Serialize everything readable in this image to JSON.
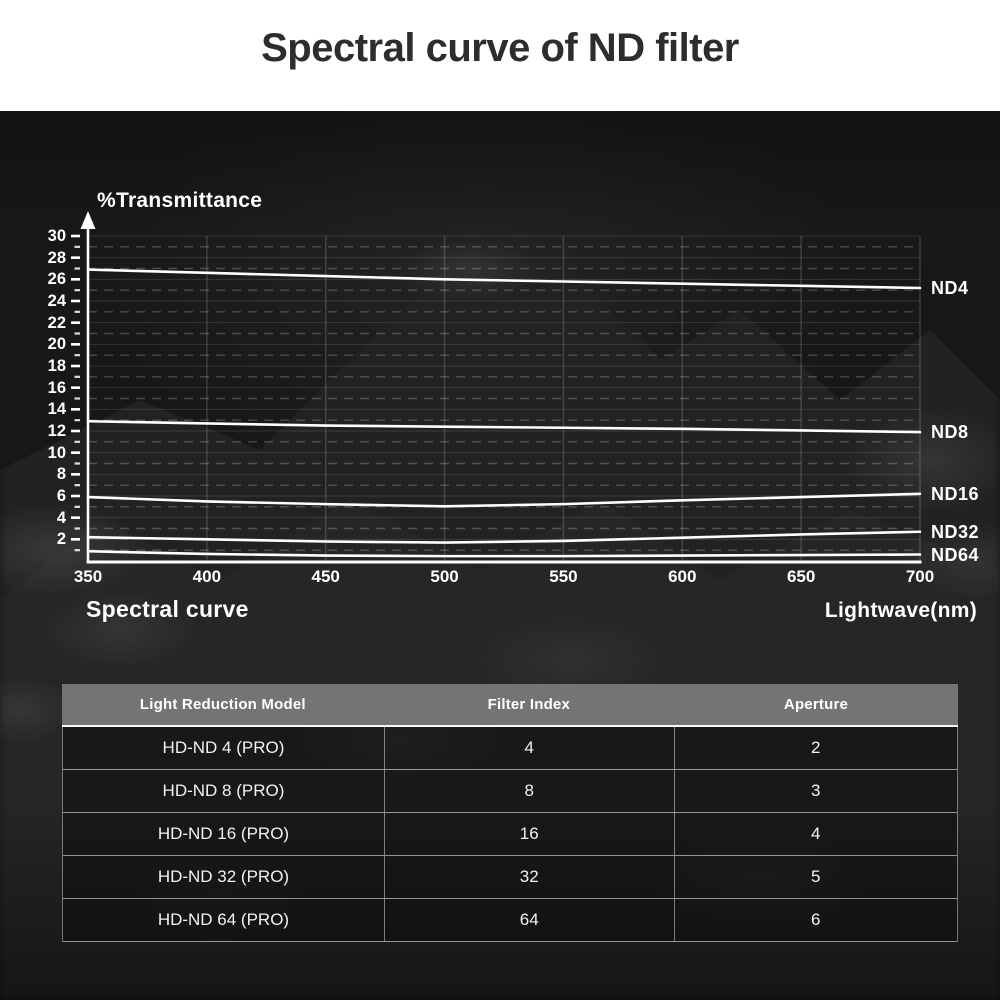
{
  "title": "Spectral curve of ND filter",
  "chart": {
    "y_axis_title": "%Transmittance",
    "x_axis_title": "Lightwave(nm)",
    "caption": "Spectral curve"
  },
  "chart_data": {
    "type": "line",
    "title": "Spectral curve of ND filter",
    "xlabel": "Lightwave(nm)",
    "ylabel": "%Transmittance",
    "x": [
      350,
      400,
      450,
      500,
      550,
      600,
      650,
      700
    ],
    "xlim": [
      350,
      700
    ],
    "ylim": [
      0,
      30
    ],
    "x_ticks": [
      350,
      400,
      450,
      500,
      550,
      600,
      650,
      700
    ],
    "y_ticks_labeled": [
      2,
      4,
      6,
      8,
      10,
      12,
      14,
      16,
      18,
      20,
      22,
      24,
      26,
      28,
      30
    ],
    "grid": {
      "horizontal_solid_at_even_values": true,
      "horizontal_dashed_at_odd_values": true,
      "vertical_at": [
        400,
        450,
        500,
        550,
        600,
        650,
        700
      ]
    },
    "legend_position": "labels at right end of each line",
    "series": [
      {
        "name": "ND4",
        "values": [
          26.9,
          26.6,
          26.3,
          26.0,
          25.8,
          25.6,
          25.4,
          25.2
        ]
      },
      {
        "name": "ND8",
        "values": [
          12.9,
          12.7,
          12.5,
          12.4,
          12.3,
          12.2,
          12.05,
          11.9
        ]
      },
      {
        "name": "ND16",
        "values": [
          5.9,
          5.5,
          5.25,
          5.05,
          5.25,
          5.6,
          5.9,
          6.2
        ]
      },
      {
        "name": "ND32",
        "values": [
          2.2,
          2.0,
          1.8,
          1.7,
          1.85,
          2.15,
          2.45,
          2.7
        ]
      },
      {
        "name": "ND64",
        "values": [
          0.9,
          0.65,
          0.5,
          0.45,
          0.45,
          0.5,
          0.55,
          0.6
        ]
      }
    ]
  },
  "table": {
    "headers": [
      "Light Reduction Model",
      "Filter Index",
      "Aperture"
    ],
    "rows": [
      [
        "HD-ND 4 (PRO)",
        "4",
        "2"
      ],
      [
        "HD-ND 8 (PRO)",
        "8",
        "3"
      ],
      [
        "HD-ND 16 (PRO)",
        "16",
        "4"
      ],
      [
        "HD-ND 32 (PRO)",
        "32",
        "5"
      ],
      [
        "HD-ND 64 (PRO)",
        "64",
        "6"
      ]
    ]
  },
  "colors": {
    "title_band": "#ffffff",
    "title_text": "#2d2d2d",
    "background": "#171717",
    "curve": "#ffffff",
    "table_header_bg": "#747474",
    "table_text": "#f2f2f2"
  }
}
